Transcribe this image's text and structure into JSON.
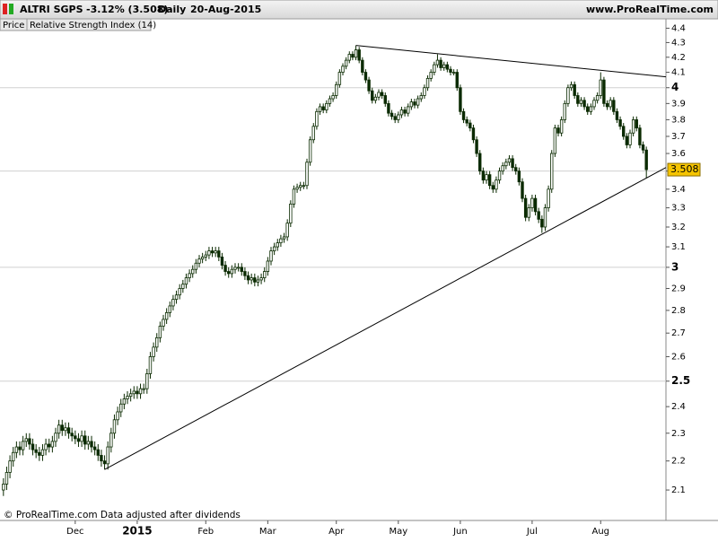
{
  "header": {
    "symbol": "ALTRI SGPS",
    "change": "-3.12% (3.508)",
    "period": "Daily",
    "date": "20-Aug-2015",
    "site": "www.ProRealTime.com"
  },
  "tabs": [
    "Price",
    "Relative Strength Index (14)"
  ],
  "footer": "© ProRealTime.com Data adjusted after dividends",
  "chart_data": {
    "type": "candlestick",
    "log_y": true,
    "up_color": "#ffffff",
    "down_color": "#0a2a00",
    "edge_color": "#0a2a00",
    "line_color": "#000000",
    "last_label_color": "#f5c400",
    "ylim": [
      2.0,
      4.46
    ],
    "yticks": [
      2.1,
      2.2,
      2.3,
      2.4,
      2.5,
      2.6,
      2.7,
      2.8,
      2.9,
      3,
      3.1,
      3.2,
      3.3,
      3.4,
      3.5,
      3.6,
      3.7,
      3.8,
      3.9,
      4,
      4.1,
      4.2,
      4.3,
      4.4
    ],
    "categories": [
      null,
      null,
      null,
      null,
      null,
      null,
      null,
      null,
      null,
      null,
      null,
      null,
      null,
      null,
      null,
      null,
      null,
      null,
      null,
      null,
      null,
      null,
      "Dec",
      null,
      null,
      null,
      null,
      null,
      null,
      null,
      null,
      null,
      null,
      null,
      null,
      null,
      null,
      null,
      null,
      null,
      null,
      "2015",
      null,
      null,
      null,
      null,
      null,
      null,
      null,
      null,
      null,
      null,
      null,
      null,
      null,
      null,
      null,
      null,
      null,
      null,
      null,
      null,
      "Feb",
      null,
      null,
      null,
      null,
      null,
      null,
      null,
      null,
      null,
      null,
      null,
      null,
      null,
      null,
      null,
      null,
      null,
      null,
      "Mar",
      null,
      null,
      null,
      null,
      null,
      null,
      null,
      null,
      null,
      null,
      null,
      null,
      null,
      null,
      null,
      null,
      null,
      null,
      null,
      null,
      "Apr",
      null,
      null,
      null,
      null,
      null,
      null,
      null,
      null,
      null,
      null,
      null,
      null,
      null,
      null,
      null,
      null,
      null,
      null,
      "May",
      null,
      null,
      null,
      null,
      null,
      null,
      null,
      null,
      null,
      null,
      null,
      null,
      null,
      null,
      null,
      null,
      null,
      null,
      "Jun",
      null,
      null,
      null,
      null,
      null,
      null,
      null,
      null,
      null,
      null,
      null,
      null,
      null,
      null,
      null,
      null,
      null,
      null,
      null,
      null,
      null,
      "Jul",
      null,
      null,
      null,
      null,
      null,
      null,
      null,
      null,
      null,
      null,
      null,
      null,
      null,
      null,
      null,
      null,
      null,
      null,
      null,
      null,
      "Aug",
      null,
      null,
      null,
      null,
      null,
      null,
      null,
      null,
      null,
      null,
      null,
      null,
      null,
      null
    ],
    "open": [
      2.1,
      2.12,
      2.16,
      2.2,
      2.23,
      2.25,
      2.24,
      2.27,
      2.28,
      2.26,
      2.24,
      2.23,
      2.22,
      2.24,
      2.26,
      2.25,
      2.27,
      2.3,
      2.33,
      2.31,
      2.32,
      2.3,
      2.29,
      2.28,
      2.27,
      2.29,
      2.26,
      2.27,
      2.25,
      2.24,
      2.22,
      2.2,
      2.19,
      2.25,
      2.3,
      2.35,
      2.38,
      2.41,
      2.43,
      2.44,
      2.45,
      2.46,
      2.45,
      2.47,
      2.47,
      2.53,
      2.6,
      2.64,
      2.68,
      2.73,
      2.76,
      2.79,
      2.82,
      2.85,
      2.87,
      2.9,
      2.92,
      2.95,
      2.97,
      2.99,
      3.02,
      3.04,
      3.05,
      3.06,
      3.08,
      3.07,
      3.08,
      3.05,
      3.01,
      2.98,
      2.97,
      2.99,
      3.0,
      3.0,
      2.98,
      2.96,
      2.94,
      2.95,
      2.93,
      2.94,
      2.95,
      2.98,
      3.03,
      3.08,
      3.1,
      3.12,
      3.14,
      3.15,
      3.22,
      3.32,
      3.4,
      3.41,
      3.42,
      3.42,
      3.55,
      3.68,
      3.76,
      3.85,
      3.88,
      3.86,
      3.9,
      3.93,
      3.95,
      4.02,
      4.1,
      4.14,
      4.18,
      4.22,
      4.2,
      4.25,
      4.18,
      4.1,
      4.05,
      3.98,
      3.92,
      3.94,
      3.97,
      3.95,
      3.9,
      3.84,
      3.82,
      3.8,
      3.83,
      3.86,
      3.84,
      3.88,
      3.91,
      3.89,
      3.93,
      3.95,
      4.0,
      4.06,
      4.1,
      4.15,
      4.18,
      4.13,
      4.15,
      4.12,
      4.1,
      4.1,
      4.0,
      3.85,
      3.8,
      3.78,
      3.75,
      3.68,
      3.6,
      3.5,
      3.45,
      3.48,
      3.42,
      3.4,
      3.45,
      3.5,
      3.53,
      3.55,
      3.57,
      3.52,
      3.5,
      3.44,
      3.35,
      3.25,
      3.3,
      3.35,
      3.28,
      3.24,
      3.2,
      3.3,
      3.4,
      3.6,
      3.75,
      3.72,
      3.8,
      3.9,
      4.0,
      4.02,
      3.95,
      3.9,
      3.92,
      3.88,
      3.85,
      3.88,
      3.92,
      3.95,
      4.05,
      3.9,
      3.88,
      3.92,
      3.85,
      3.8,
      3.76,
      3.7,
      3.65,
      3.72,
      3.8,
      3.75,
      3.65,
      3.62
    ],
    "high": [
      2.14,
      2.18,
      2.22,
      2.25,
      2.27,
      2.27,
      2.29,
      2.3,
      2.3,
      2.28,
      2.26,
      2.25,
      2.26,
      2.28,
      2.28,
      2.29,
      2.32,
      2.35,
      2.35,
      2.34,
      2.34,
      2.32,
      2.31,
      2.3,
      2.31,
      2.31,
      2.29,
      2.29,
      2.27,
      2.26,
      2.24,
      2.22,
      2.27,
      2.32,
      2.37,
      2.4,
      2.43,
      2.45,
      2.46,
      2.47,
      2.48,
      2.48,
      2.49,
      2.49,
      2.55,
      2.62,
      2.66,
      2.7,
      2.75,
      2.78,
      2.81,
      2.84,
      2.87,
      2.89,
      2.92,
      2.94,
      2.97,
      2.99,
      3.01,
      3.04,
      3.06,
      3.07,
      3.08,
      3.1,
      3.1,
      3.1,
      3.1,
      3.07,
      3.03,
      3.0,
      3.01,
      3.02,
      3.02,
      3.02,
      3.0,
      2.98,
      2.97,
      2.97,
      2.96,
      2.97,
      3.0,
      3.05,
      3.1,
      3.12,
      3.14,
      3.16,
      3.17,
      3.24,
      3.34,
      3.42,
      3.43,
      3.44,
      3.44,
      3.57,
      3.7,
      3.78,
      3.87,
      3.9,
      3.9,
      3.92,
      3.95,
      3.97,
      4.04,
      4.12,
      4.16,
      4.2,
      4.24,
      4.24,
      4.28,
      4.27,
      4.2,
      4.12,
      4.07,
      4.0,
      3.96,
      3.99,
      3.99,
      3.97,
      3.92,
      3.86,
      3.84,
      3.85,
      3.88,
      3.88,
      3.9,
      3.93,
      3.93,
      3.95,
      3.97,
      4.02,
      4.08,
      4.12,
      4.17,
      4.22,
      4.2,
      4.17,
      4.17,
      4.14,
      4.12,
      4.12,
      4.02,
      3.87,
      3.82,
      3.8,
      3.77,
      3.7,
      3.62,
      3.52,
      3.5,
      3.5,
      3.44,
      3.47,
      3.52,
      3.55,
      3.57,
      3.59,
      3.59,
      3.54,
      3.52,
      3.46,
      3.37,
      3.32,
      3.37,
      3.37,
      3.3,
      3.26,
      3.32,
      3.42,
      3.62,
      3.77,
      3.77,
      3.82,
      3.92,
      4.02,
      4.04,
      4.04,
      3.97,
      3.94,
      3.94,
      3.9,
      3.9,
      3.94,
      3.97,
      4.1,
      4.07,
      3.92,
      3.94,
      3.94,
      3.87,
      3.82,
      3.78,
      3.72,
      3.74,
      3.82,
      3.82,
      3.77,
      3.67,
      3.64
    ],
    "low": [
      2.08,
      2.1,
      2.14,
      2.18,
      2.21,
      2.22,
      2.22,
      2.25,
      2.24,
      2.22,
      2.21,
      2.2,
      2.2,
      2.22,
      2.23,
      2.23,
      2.25,
      2.28,
      2.29,
      2.29,
      2.28,
      2.27,
      2.26,
      2.25,
      2.25,
      2.24,
      2.24,
      2.23,
      2.22,
      2.2,
      2.18,
      2.17,
      2.17,
      2.23,
      2.28,
      2.33,
      2.36,
      2.39,
      2.41,
      2.42,
      2.43,
      2.43,
      2.43,
      2.45,
      2.45,
      2.51,
      2.58,
      2.62,
      2.66,
      2.71,
      2.74,
      2.77,
      2.8,
      2.83,
      2.85,
      2.88,
      2.9,
      2.93,
      2.95,
      2.97,
      3.0,
      3.02,
      3.03,
      3.04,
      3.05,
      3.05,
      3.03,
      2.99,
      2.96,
      2.95,
      2.95,
      2.97,
      2.98,
      2.96,
      2.94,
      2.92,
      2.92,
      2.91,
      2.91,
      2.92,
      2.93,
      2.96,
      3.01,
      3.06,
      3.08,
      3.1,
      3.12,
      3.13,
      3.2,
      3.3,
      3.38,
      3.39,
      3.4,
      3.4,
      3.53,
      3.66,
      3.74,
      3.83,
      3.84,
      3.84,
      3.88,
      3.91,
      3.93,
      4.0,
      4.08,
      4.12,
      4.16,
      4.18,
      4.18,
      4.16,
      4.08,
      4.03,
      3.96,
      3.9,
      3.9,
      3.92,
      3.93,
      3.88,
      3.82,
      3.8,
      3.78,
      3.78,
      3.81,
      3.82,
      3.82,
      3.86,
      3.87,
      3.87,
      3.91,
      3.93,
      3.98,
      4.04,
      4.08,
      4.13,
      4.11,
      4.11,
      4.1,
      4.08,
      4.08,
      3.98,
      3.83,
      3.78,
      3.76,
      3.73,
      3.66,
      3.58,
      3.48,
      3.43,
      3.43,
      3.4,
      3.38,
      3.38,
      3.43,
      3.48,
      3.51,
      3.53,
      3.5,
      3.48,
      3.42,
      3.33,
      3.23,
      3.23,
      3.28,
      3.26,
      3.22,
      3.17,
      3.18,
      3.28,
      3.38,
      3.58,
      3.7,
      3.7,
      3.78,
      3.88,
      3.98,
      3.93,
      3.88,
      3.88,
      3.86,
      3.83,
      3.83,
      3.86,
      3.9,
      3.93,
      3.88,
      3.86,
      3.86,
      3.83,
      3.78,
      3.74,
      3.68,
      3.63,
      3.63,
      3.7,
      3.73,
      3.63,
      3.6,
      3.46
    ],
    "close": [
      2.12,
      2.16,
      2.2,
      2.23,
      2.25,
      2.24,
      2.27,
      2.28,
      2.26,
      2.24,
      2.23,
      2.22,
      2.24,
      2.26,
      2.25,
      2.27,
      2.3,
      2.33,
      2.31,
      2.32,
      2.3,
      2.29,
      2.28,
      2.27,
      2.29,
      2.26,
      2.27,
      2.25,
      2.24,
      2.22,
      2.2,
      2.19,
      2.25,
      2.3,
      2.35,
      2.38,
      2.41,
      2.43,
      2.44,
      2.45,
      2.46,
      2.45,
      2.47,
      2.47,
      2.53,
      2.6,
      2.64,
      2.68,
      2.73,
      2.76,
      2.79,
      2.82,
      2.85,
      2.87,
      2.9,
      2.92,
      2.95,
      2.97,
      2.99,
      3.02,
      3.04,
      3.05,
      3.06,
      3.08,
      3.07,
      3.08,
      3.05,
      3.01,
      2.98,
      2.97,
      2.99,
      3.0,
      3.0,
      2.98,
      2.96,
      2.94,
      2.95,
      2.93,
      2.94,
      2.95,
      2.98,
      3.03,
      3.08,
      3.1,
      3.12,
      3.14,
      3.15,
      3.22,
      3.32,
      3.4,
      3.41,
      3.42,
      3.42,
      3.55,
      3.68,
      3.76,
      3.85,
      3.88,
      3.86,
      3.9,
      3.93,
      3.95,
      4.02,
      4.1,
      4.14,
      4.18,
      4.22,
      4.2,
      4.25,
      4.18,
      4.1,
      4.05,
      3.98,
      3.92,
      3.94,
      3.97,
      3.95,
      3.9,
      3.84,
      3.82,
      3.8,
      3.83,
      3.86,
      3.84,
      3.88,
      3.91,
      3.89,
      3.93,
      3.95,
      4.0,
      4.06,
      4.1,
      4.15,
      4.18,
      4.13,
      4.15,
      4.12,
      4.1,
      4.1,
      4.0,
      3.85,
      3.8,
      3.78,
      3.75,
      3.68,
      3.6,
      3.5,
      3.45,
      3.48,
      3.42,
      3.4,
      3.45,
      3.5,
      3.53,
      3.55,
      3.57,
      3.52,
      3.5,
      3.44,
      3.35,
      3.25,
      3.3,
      3.35,
      3.28,
      3.24,
      3.2,
      3.3,
      3.4,
      3.6,
      3.75,
      3.72,
      3.8,
      3.9,
      4.0,
      4.02,
      3.95,
      3.9,
      3.92,
      3.88,
      3.85,
      3.88,
      3.92,
      3.95,
      4.05,
      3.9,
      3.88,
      3.92,
      3.85,
      3.8,
      3.76,
      3.7,
      3.65,
      3.72,
      3.8,
      3.75,
      3.65,
      3.62,
      3.508
    ],
    "trendlines": [
      {
        "from": 31,
        "values": [
          2.17,
          3.52
        ]
      },
      {
        "from": 108,
        "values": [
          4.28,
          4.07
        ]
      }
    ]
  }
}
